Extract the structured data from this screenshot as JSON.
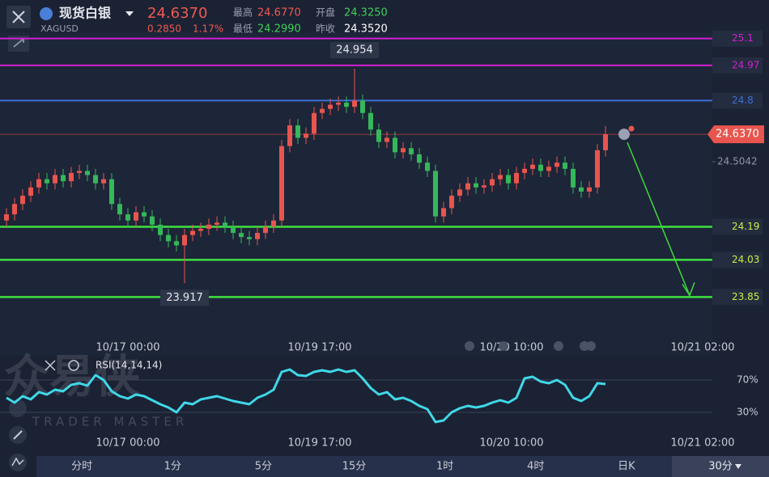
{
  "header": {
    "name": "现货白银",
    "symbol": "XAGUSD",
    "price": "24.6370",
    "change": "0.2850",
    "change_pct": "1.17%",
    "high_label": "最高",
    "high": "24.6770",
    "open_label": "开盘",
    "open": "24.3250",
    "low_label": "最低",
    "low": "24.2990",
    "prev_label": "昨收",
    "prev": "24.3520"
  },
  "watermark": {
    "brand": "众易侠",
    "tagline": "TRADER MASTER"
  },
  "toolbar": {
    "timeframes": [
      "分时",
      "1分",
      "5分",
      "15分",
      "1时",
      "4时",
      "日K"
    ],
    "more": "30分"
  },
  "chart_data": [
    {
      "type": "candlestick",
      "up_color": "#e8554e",
      "down_color": "#35b85a",
      "ylim": [
        23.75,
        25.13
      ],
      "yticks": [
        24.5042
      ],
      "time_labels": [
        "10/17 00:00",
        "10/19 17:00",
        "10/20 10:00",
        "10/21 02:00"
      ],
      "last_price": {
        "value": 24.637,
        "label": "24.6370"
      },
      "levels": [
        {
          "value": 25.1,
          "color": "#d21fd2"
        },
        {
          "value": 24.97,
          "color": "#d21fd2"
        },
        {
          "value": 24.8,
          "color": "#3d6fd6"
        },
        {
          "value": 24.19,
          "color": "#3fe03f"
        },
        {
          "value": 24.03,
          "color": "#3fe03f"
        },
        {
          "value": 23.85,
          "color": "#3fe03f"
        }
      ],
      "open": [
        24.22,
        24.25,
        24.3,
        24.34,
        24.38,
        24.42,
        24.4,
        24.44,
        24.41,
        24.45,
        24.46,
        24.44,
        24.4,
        24.42,
        24.3,
        24.25,
        24.22,
        24.26,
        24.24,
        24.2,
        24.15,
        24.12,
        24.1,
        24.15,
        24.17,
        24.18,
        24.2,
        24.21,
        24.19,
        24.16,
        24.14,
        24.13,
        24.16,
        24.19,
        24.22,
        24.58,
        24.68,
        24.62,
        24.64,
        24.74,
        24.76,
        24.78,
        24.79,
        24.77,
        24.8,
        24.74,
        24.66,
        24.6,
        24.62,
        24.55,
        24.57,
        24.54,
        24.5,
        24.46,
        24.24,
        24.28,
        24.34,
        24.37,
        24.4,
        24.38,
        24.39,
        24.42,
        24.44,
        24.4,
        24.45,
        24.47,
        24.49,
        24.46,
        24.48,
        24.5,
        24.47,
        24.38,
        24.36,
        24.38,
        24.56
      ],
      "high": [
        24.28,
        24.33,
        24.37,
        24.41,
        24.45,
        24.45,
        24.47,
        24.47,
        24.48,
        24.49,
        24.49,
        24.47,
        24.45,
        24.45,
        24.33,
        24.28,
        24.29,
        24.29,
        24.27,
        24.23,
        24.18,
        24.15,
        24.18,
        24.2,
        24.21,
        24.23,
        24.24,
        24.24,
        24.22,
        24.19,
        24.17,
        24.19,
        24.22,
        24.25,
        24.61,
        24.71,
        24.71,
        24.67,
        24.77,
        24.79,
        24.81,
        24.82,
        24.82,
        24.954,
        24.83,
        24.77,
        24.69,
        24.65,
        24.65,
        24.6,
        24.6,
        24.57,
        24.53,
        24.49,
        24.31,
        24.37,
        24.4,
        24.43,
        24.43,
        24.42,
        24.45,
        24.47,
        24.47,
        24.48,
        24.5,
        24.52,
        24.52,
        24.51,
        24.53,
        24.53,
        24.5,
        24.41,
        24.41,
        24.59,
        24.677
      ],
      "low": [
        24.19,
        24.22,
        24.27,
        24.31,
        24.35,
        24.37,
        24.37,
        24.38,
        24.38,
        24.42,
        24.41,
        24.37,
        24.37,
        24.27,
        24.22,
        24.19,
        24.19,
        24.21,
        24.17,
        24.12,
        24.09,
        24.07,
        23.917,
        24.12,
        24.14,
        24.15,
        24.17,
        24.16,
        24.13,
        24.11,
        24.1,
        24.1,
        24.13,
        24.16,
        24.19,
        24.55,
        24.59,
        24.59,
        24.61,
        24.71,
        24.73,
        24.75,
        24.74,
        24.74,
        24.71,
        24.63,
        24.57,
        24.57,
        24.52,
        24.52,
        24.51,
        24.47,
        24.43,
        24.21,
        24.21,
        24.25,
        24.31,
        24.34,
        24.35,
        24.35,
        24.36,
        24.39,
        24.37,
        24.37,
        24.42,
        24.44,
        24.43,
        24.43,
        24.45,
        24.44,
        24.35,
        24.33,
        24.33,
        24.35,
        24.53
      ],
      "close": [
        24.25,
        24.3,
        24.34,
        24.38,
        24.42,
        24.4,
        24.44,
        24.41,
        24.45,
        24.46,
        24.44,
        24.4,
        24.42,
        24.3,
        24.25,
        24.22,
        24.26,
        24.24,
        24.2,
        24.15,
        24.12,
        24.1,
        24.15,
        24.17,
        24.18,
        24.2,
        24.21,
        24.19,
        24.16,
        24.14,
        24.13,
        24.16,
        24.19,
        24.22,
        24.58,
        24.68,
        24.62,
        24.64,
        24.74,
        24.76,
        24.78,
        24.79,
        24.77,
        24.8,
        24.74,
        24.66,
        24.6,
        24.62,
        24.55,
        24.57,
        24.54,
        24.5,
        24.46,
        24.24,
        24.28,
        24.34,
        24.37,
        24.4,
        24.38,
        24.39,
        24.42,
        24.44,
        24.4,
        24.45,
        24.47,
        24.49,
        24.46,
        24.48,
        24.5,
        24.47,
        24.38,
        24.36,
        24.38,
        24.56,
        24.637
      ]
    },
    {
      "type": "line",
      "title": "RSI(14,14,14)",
      "color": "#3fd8e8",
      "ylim": [
        0,
        100
      ],
      "yticks": [
        {
          "value": 70,
          "label": "70%"
        },
        {
          "value": 30,
          "label": "30%"
        }
      ],
      "values": [
        48,
        42,
        50,
        46,
        55,
        52,
        58,
        56,
        64,
        66,
        63,
        76,
        70,
        56,
        50,
        47,
        52,
        50,
        45,
        40,
        36,
        30,
        42,
        40,
        46,
        48,
        50,
        47,
        44,
        42,
        40,
        48,
        52,
        58,
        80,
        83,
        76,
        75,
        80,
        82,
        80,
        83,
        80,
        82,
        72,
        60,
        52,
        55,
        46,
        48,
        44,
        38,
        34,
        18,
        20,
        30,
        35,
        38,
        36,
        38,
        42,
        45,
        42,
        48,
        72,
        74,
        68,
        66,
        70,
        64,
        48,
        44,
        50,
        66,
        65
      ]
    }
  ]
}
